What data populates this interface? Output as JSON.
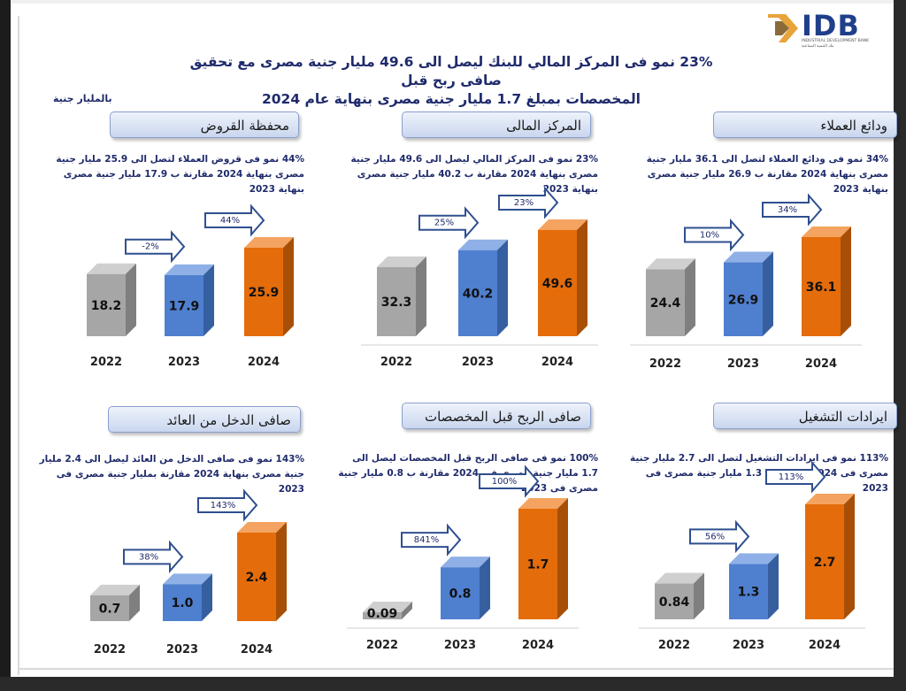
{
  "header": {
    "logo_text": "IDB",
    "logo_sub": "INDUSTRIAL DEVELOPMENT BANK",
    "logo_sub_ar": "بنك التنمية الصناعية",
    "headline_line1": "23% نمو فى المركز المالي للبنك ليصل الى 49.6 مليار جنية مصرى مع تحقيق صافى ربح قبل",
    "headline_line2": "المخصصات بمبلغ 1.7 مليار جنية مصرى بنهاية عام 2024",
    "unit_note": "بالمليار جنية"
  },
  "colors": {
    "gray": "#a6a6a6",
    "blue": "#4f7fcf",
    "orange": "#e46c0a",
    "navy": "#1f2a6b"
  },
  "chart_data": [
    {
      "type": "bar",
      "title": "محفظة القروض",
      "description": "44% نمو فى قروض العملاء لتصل الى 25.9 مليار جنية مصرى بنهاية 2024 مقارنة ب 17.9 مليار جنية مصرى بنهاية 2023",
      "categories": [
        "2022",
        "2023",
        "2024"
      ],
      "values": [
        18.2,
        17.9,
        25.9
      ],
      "value_labels": [
        "18.2",
        "17.9",
        "25.9"
      ],
      "growth_labels": [
        "-2%",
        "44%"
      ]
    },
    {
      "type": "bar",
      "title": "المركز المالى",
      "description": "23% نمو فى المركز المالي ليصل الى 49.6 مليار جنية مصرى بنهاية 2024 مقارنة ب 40.2 مليار جنية مصرى بنهاية 2023",
      "categories": [
        "2022",
        "2023",
        "2024"
      ],
      "values": [
        32.3,
        40.2,
        49.6
      ],
      "value_labels": [
        "32.3",
        "40.2",
        "49.6"
      ],
      "growth_labels": [
        "25%",
        "23%"
      ]
    },
    {
      "type": "bar",
      "title": "ودائع العملاء",
      "description": "34% نمو فى ودائع العملاء لتصل الى 36.1 مليار جنية مصرى بنهاية 2024 مقارنة ب 26.9 مليار جنية مصرى بنهاية 2023",
      "categories": [
        "2022",
        "2023",
        "2024"
      ],
      "values": [
        24.4,
        26.9,
        36.1
      ],
      "value_labels": [
        "24.4",
        "26.9",
        "36.1"
      ],
      "growth_labels": [
        "10%",
        "34%"
      ]
    },
    {
      "type": "bar",
      "title": "صافى الدخل من العائد",
      "description": "143% نمو فى صافى الدخل من العائد ليصل الى 2.4 مليار جنية مصرى بنهاية 2024 مقارنة بمليار جنية مصرى فى 2023",
      "categories": [
        "2022",
        "2023",
        "2024"
      ],
      "values": [
        0.7,
        1.0,
        2.4
      ],
      "value_labels": [
        "0.7",
        "1.0",
        "2.4"
      ],
      "growth_labels": [
        "38%",
        "143%"
      ]
    },
    {
      "type": "bar",
      "title": "صافى الربح قبل المخصصات",
      "description": "100% نمو فى صافى الربح قبل المخصصات ليصل الى 1.7 مليار جنية مصرى فى 2024 مقارنة ب 0.8 مليار جنية مصرى فى 2023",
      "categories": [
        "2022",
        "2023",
        "2024"
      ],
      "values": [
        0.09,
        0.8,
        1.7
      ],
      "value_labels": [
        "0.09",
        "0.8",
        "1.7"
      ],
      "growth_labels": [
        "841%",
        "100%"
      ]
    },
    {
      "type": "bar",
      "title": "ايرادات التشغيل",
      "description": "113% نمو فى ايرادات التشغيل لتصل الى 2.7 مليار جنية مصرى فى 2024 مقارنة ب 1.3 مليار جنية مصرى فى 2023",
      "categories": [
        "2022",
        "2023",
        "2024"
      ],
      "values": [
        0.84,
        1.3,
        2.7
      ],
      "value_labels": [
        "0.84",
        "1.3",
        "2.7"
      ],
      "growth_labels": [
        "56%",
        "113%"
      ]
    }
  ]
}
